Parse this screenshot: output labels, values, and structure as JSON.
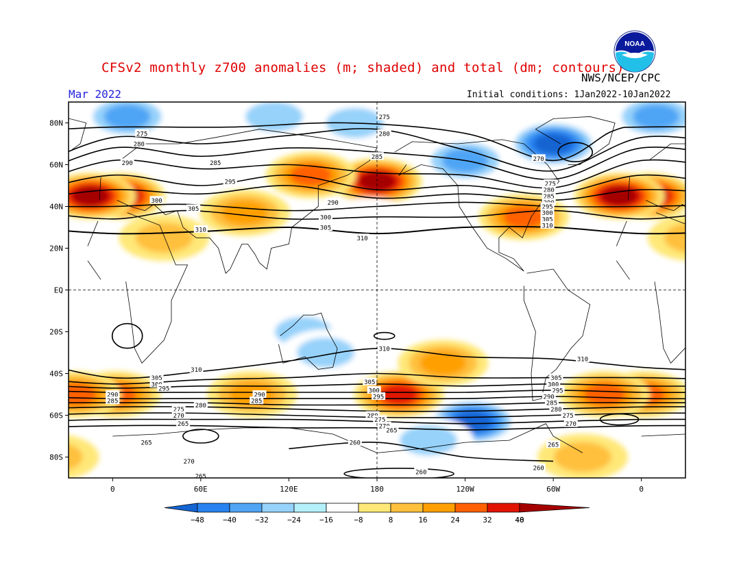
{
  "title": "CFSv2 monthly z700 anomalies (m; shaded) and total (dm; contours)",
  "agency": "NWS/NCEP/CPC",
  "period": "Mar 2022",
  "initial_conditions": "Initial conditions: 1Jan2022-10Jan2022",
  "logo_text": "NOAA",
  "chart_data": {
    "type": "map",
    "variable": "700 hPa geopotential height",
    "shading": "anomaly (m)",
    "contours": "total (dm)",
    "x_tick_labels": [
      "0",
      "60E",
      "120E",
      "180",
      "120W",
      "60W",
      "0"
    ],
    "y_tick_labels": [
      "80N",
      "60N",
      "40N",
      "20N",
      "EQ",
      "20S",
      "40S",
      "60S",
      "80S"
    ],
    "colorbar": {
      "tick_labels": [
        "-48",
        "-40",
        "-32",
        "-24",
        "-16",
        "-8",
        "8",
        "16",
        "24",
        "32",
        "40",
        "48"
      ],
      "colors": [
        "#1464d2",
        "#2882f0",
        "#50a5f5",
        "#96d2fa",
        "#b4f0fa",
        "#ffffff",
        "#ffe878",
        "#ffc03c",
        "#ffa000",
        "#ff6000",
        "#e11400",
        "#a50000"
      ]
    },
    "anomaly_centers": [
      {
        "lon": 5,
        "lat": 45,
        "value": 48
      },
      {
        "lon": 180,
        "lat": 52,
        "value": 48
      },
      {
        "lon": 135,
        "lat": 55,
        "value": 32
      },
      {
        "lon": 345,
        "lat": 45,
        "value": 48
      },
      {
        "lon": 280,
        "lat": 35,
        "value": 32
      },
      {
        "lon": 90,
        "lat": 37,
        "value": 24
      },
      {
        "lon": 35,
        "lat": 25,
        "value": 16
      },
      {
        "lon": 10,
        "lat": 83,
        "value": -24
      },
      {
        "lon": 300,
        "lat": 70,
        "value": -40
      },
      {
        "lon": 240,
        "lat": 62,
        "value": -24
      },
      {
        "lon": 110,
        "lat": 83,
        "value": -16
      },
      {
        "lon": 165,
        "lat": 80,
        "value": -16
      },
      {
        "lon": 130,
        "lat": -20,
        "value": -16
      },
      {
        "lon": 145,
        "lat": -30,
        "value": -16
      },
      {
        "lon": 175,
        "lat": 33,
        "value": -8
      },
      {
        "lon": 195,
        "lat": -50,
        "value": 40
      },
      {
        "lon": 2,
        "lat": -50,
        "value": 32
      },
      {
        "lon": 95,
        "lat": -50,
        "value": 24
      },
      {
        "lon": 335,
        "lat": -50,
        "value": 32
      },
      {
        "lon": 225,
        "lat": -35,
        "value": 24
      },
      {
        "lon": 245,
        "lat": -63,
        "value": -40
      },
      {
        "lon": 215,
        "lat": -72,
        "value": -16
      },
      {
        "lon": 320,
        "lat": -80,
        "value": 16
      }
    ],
    "contour_lines": [
      {
        "level": 310,
        "points": [
          [
            0,
            27
          ],
          [
            60,
            28
          ],
          [
            120,
            30
          ],
          [
            180,
            27
          ],
          [
            240,
            30
          ],
          [
            300,
            30
          ],
          [
            360,
            27
          ]
        ]
      },
      {
        "level": 305,
        "points": [
          [
            0,
            34
          ],
          [
            50,
            38
          ],
          [
            120,
            34
          ],
          [
            180,
            35
          ],
          [
            240,
            35
          ],
          [
            300,
            38
          ],
          [
            360,
            34
          ]
        ]
      },
      {
        "level": 300,
        "points": [
          [
            0,
            40
          ],
          [
            50,
            41
          ],
          [
            120,
            38
          ],
          [
            180,
            40
          ],
          [
            240,
            42
          ],
          [
            300,
            40
          ],
          [
            360,
            40
          ]
        ]
      },
      {
        "level": 295,
        "points": [
          [
            0,
            48
          ],
          [
            60,
            46
          ],
          [
            120,
            50
          ],
          [
            180,
            44
          ],
          [
            240,
            46
          ],
          [
            300,
            43
          ],
          [
            360,
            48
          ]
        ]
      },
      {
        "level": 290,
        "points": [
          [
            0,
            55
          ],
          [
            60,
            50
          ],
          [
            120,
            55
          ],
          [
            180,
            48
          ],
          [
            240,
            50
          ],
          [
            300,
            46
          ],
          [
            360,
            55
          ]
        ]
      },
      {
        "level": 285,
        "points": [
          [
            0,
            62
          ],
          [
            60,
            58
          ],
          [
            120,
            60
          ],
          [
            180,
            56
          ],
          [
            240,
            55
          ],
          [
            300,
            49
          ],
          [
            360,
            62
          ]
        ]
      },
      {
        "level": 280,
        "points": [
          [
            0,
            68
          ],
          [
            60,
            64
          ],
          [
            120,
            68
          ],
          [
            180,
            66
          ],
          [
            240,
            62
          ],
          [
            300,
            53
          ],
          [
            360,
            68
          ]
        ]
      },
      {
        "level": 275,
        "points": [
          [
            0,
            73
          ],
          [
            60,
            70
          ],
          [
            120,
            74
          ],
          [
            180,
            77
          ],
          [
            240,
            67
          ],
          [
            300,
            57
          ],
          [
            360,
            73
          ]
        ]
      },
      {
        "level": 270,
        "points": [
          [
            0,
            78
          ],
          [
            80,
            78
          ],
          [
            160,
            80
          ],
          [
            240,
            75
          ],
          [
            300,
            62
          ],
          [
            340,
            76
          ],
          [
            360,
            78
          ]
        ]
      },
      {
        "level": 310,
        "points": [
          [
            0,
            -42
          ],
          [
            60,
            -39
          ],
          [
            120,
            -34
          ],
          [
            180,
            -28
          ],
          [
            240,
            -32
          ],
          [
            300,
            -33
          ],
          [
            360,
            -37
          ]
        ]
      },
      {
        "level": 305,
        "points": [
          [
            0,
            -45
          ],
          [
            60,
            -43
          ],
          [
            120,
            -42
          ],
          [
            180,
            -40
          ],
          [
            240,
            -42
          ],
          [
            300,
            -42
          ],
          [
            360,
            -42
          ]
        ]
      },
      {
        "level": 300,
        "points": [
          [
            0,
            -47
          ],
          [
            60,
            -46
          ],
          [
            120,
            -46
          ],
          [
            180,
            -45
          ],
          [
            240,
            -46
          ],
          [
            300,
            -45
          ],
          [
            360,
            -46
          ]
        ]
      },
      {
        "level": 295,
        "points": [
          [
            0,
            -49
          ],
          [
            60,
            -49
          ],
          [
            120,
            -49
          ],
          [
            180,
            -49
          ],
          [
            240,
            -49
          ],
          [
            300,
            -48
          ],
          [
            360,
            -49
          ]
        ]
      },
      {
        "level": 290,
        "points": [
          [
            0,
            -52
          ],
          [
            60,
            -52
          ],
          [
            120,
            -52
          ],
          [
            180,
            -52
          ],
          [
            240,
            -52
          ],
          [
            300,
            -51
          ],
          [
            360,
            -52
          ]
        ]
      },
      {
        "level": 285,
        "points": [
          [
            0,
            -54
          ],
          [
            60,
            -54
          ],
          [
            120,
            -55
          ],
          [
            180,
            -55
          ],
          [
            240,
            -55
          ],
          [
            300,
            -54
          ],
          [
            360,
            -54
          ]
        ]
      },
      {
        "level": 280,
        "points": [
          [
            0,
            -56
          ],
          [
            60,
            -56
          ],
          [
            120,
            -57
          ],
          [
            180,
            -58
          ],
          [
            240,
            -58
          ],
          [
            300,
            -57
          ],
          [
            360,
            -56
          ]
        ]
      },
      {
        "level": 275,
        "points": [
          [
            0,
            -59
          ],
          [
            60,
            -59
          ],
          [
            120,
            -60
          ],
          [
            180,
            -61
          ],
          [
            240,
            -61
          ],
          [
            300,
            -60
          ],
          [
            360,
            -59
          ]
        ]
      },
      {
        "level": 270,
        "points": [
          [
            0,
            -62
          ],
          [
            60,
            -62
          ],
          [
            120,
            -62
          ],
          [
            180,
            -63
          ],
          [
            240,
            -64
          ],
          [
            300,
            -63
          ],
          [
            360,
            -62
          ]
        ]
      },
      {
        "level": 265,
        "points": [
          [
            0,
            -65
          ],
          [
            60,
            -65
          ],
          [
            120,
            -66
          ],
          [
            180,
            -66
          ],
          [
            240,
            -67
          ],
          [
            300,
            -66
          ],
          [
            360,
            -65
          ]
        ]
      },
      {
        "level": 260,
        "points": [
          [
            120,
            -76
          ],
          [
            180,
            -73
          ],
          [
            240,
            -80
          ],
          [
            300,
            -82
          ]
        ]
      }
    ],
    "contour_labels": [
      {
        "text": "275",
        "lon": 185,
        "lat": 83
      },
      {
        "text": "275",
        "lon": 20,
        "lat": 75
      },
      {
        "text": "280",
        "lon": 18,
        "lat": 70
      },
      {
        "text": "280",
        "lon": 185,
        "lat": 75
      },
      {
        "text": "290",
        "lon": 10,
        "lat": 61
      },
      {
        "text": "285",
        "lon": 70,
        "lat": 61
      },
      {
        "text": "285",
        "lon": 180,
        "lat": 64
      },
      {
        "text": "295",
        "lon": 80,
        "lat": 52
      },
      {
        "text": "290",
        "lon": 150,
        "lat": 42
      },
      {
        "text": "300",
        "lon": 30,
        "lat": 43
      },
      {
        "text": "305",
        "lon": 55,
        "lat": 39
      },
      {
        "text": "300",
        "lon": 145,
        "lat": 35
      },
      {
        "text": "305",
        "lon": 145,
        "lat": 30
      },
      {
        "text": "310",
        "lon": 60,
        "lat": 29
      },
      {
        "text": "310",
        "lon": 170,
        "lat": 25
      },
      {
        "text": "270",
        "lon": 290,
        "lat": 63
      },
      {
        "text": "275",
        "lon": 298,
        "lat": 51
      },
      {
        "text": "280",
        "lon": 297,
        "lat": 48
      },
      {
        "text": "285",
        "lon": 297,
        "lat": 45
      },
      {
        "text": "290",
        "lon": 297,
        "lat": 42
      },
      {
        "text": "295",
        "lon": 296,
        "lat": 40
      },
      {
        "text": "300",
        "lon": 296,
        "lat": 37
      },
      {
        "text": "305",
        "lon": 296,
        "lat": 34
      },
      {
        "text": "310",
        "lon": 296,
        "lat": 31
      },
      {
        "text": "310",
        "lon": 185,
        "lat": -28
      },
      {
        "text": "310",
        "lon": 320,
        "lat": -33
      },
      {
        "text": "310",
        "lon": 57,
        "lat": -38
      },
      {
        "text": "305",
        "lon": 30,
        "lat": -42
      },
      {
        "text": "300",
        "lon": 30,
        "lat": -45
      },
      {
        "text": "295",
        "lon": 35,
        "lat": -47
      },
      {
        "text": "290",
        "lon": 0,
        "lat": -50
      },
      {
        "text": "285",
        "lon": 0,
        "lat": -53
      },
      {
        "text": "290",
        "lon": 100,
        "lat": -50
      },
      {
        "text": "285",
        "lon": 98,
        "lat": -53
      },
      {
        "text": "280",
        "lon": 60,
        "lat": -55
      },
      {
        "text": "275",
        "lon": 45,
        "lat": -57
      },
      {
        "text": "270",
        "lon": 45,
        "lat": -60
      },
      {
        "text": "265",
        "lon": 48,
        "lat": -64
      },
      {
        "text": "305",
        "lon": 175,
        "lat": -44
      },
      {
        "text": "300",
        "lon": 178,
        "lat": -48
      },
      {
        "text": "295",
        "lon": 181,
        "lat": -51
      },
      {
        "text": "280",
        "lon": 177,
        "lat": -60
      },
      {
        "text": "275",
        "lon": 182,
        "lat": -62
      },
      {
        "text": "270",
        "lon": 185,
        "lat": -65
      },
      {
        "text": "265",
        "lon": 190,
        "lat": -67
      },
      {
        "text": "305",
        "lon": 302,
        "lat": -42
      },
      {
        "text": "300",
        "lon": 300,
        "lat": -45
      },
      {
        "text": "295",
        "lon": 303,
        "lat": -48
      },
      {
        "text": "290",
        "lon": 297,
        "lat": -51
      },
      {
        "text": "285",
        "lon": 299,
        "lat": -54
      },
      {
        "text": "280",
        "lon": 302,
        "lat": -57
      },
      {
        "text": "275",
        "lon": 310,
        "lat": -60
      },
      {
        "text": "270",
        "lon": 312,
        "lat": -64
      },
      {
        "text": "265",
        "lon": 23,
        "lat": -73
      },
      {
        "text": "260",
        "lon": 165,
        "lat": -73
      },
      {
        "text": "265",
        "lon": 300,
        "lat": -74
      },
      {
        "text": "270",
        "lon": 52,
        "lat": -82
      },
      {
        "text": "265",
        "lon": 60,
        "lat": -89
      },
      {
        "text": "260",
        "lon": 210,
        "lat": -87
      },
      {
        "text": "260",
        "lon": 290,
        "lat": -85
      }
    ]
  }
}
